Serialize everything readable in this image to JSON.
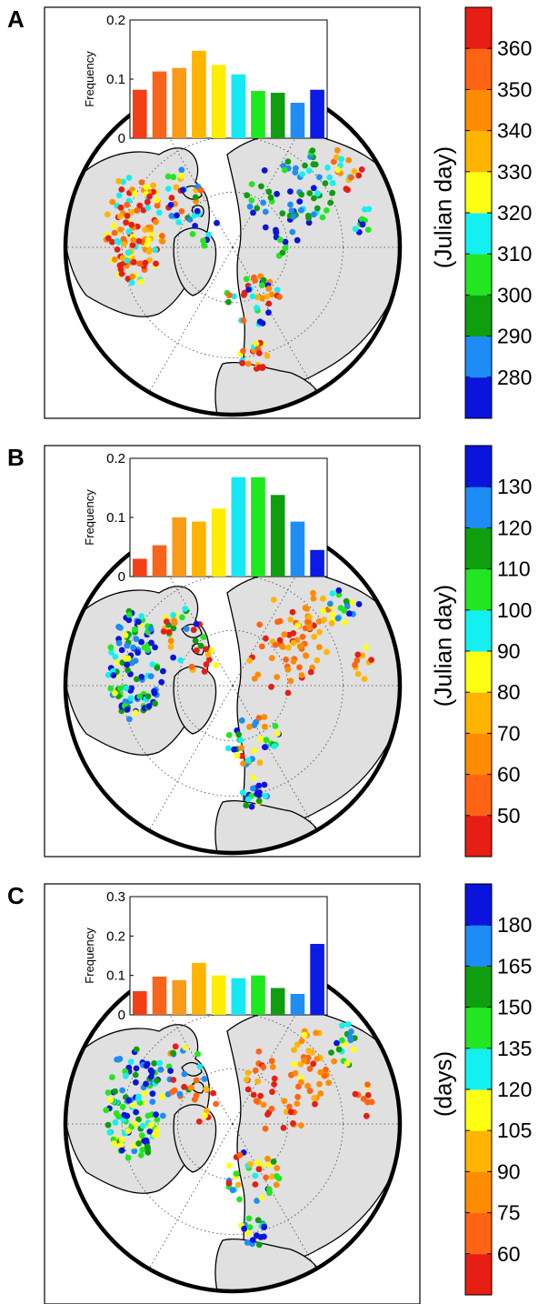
{
  "panels": [
    {
      "letter": "A",
      "ylabel": "Frequency",
      "ylim": [
        0,
        0.2
      ],
      "yticks": [
        "0",
        "0.1",
        "0.2"
      ],
      "hist_values": [
        0.082,
        0.113,
        0.119,
        0.148,
        0.124,
        0.108,
        0.08,
        0.077,
        0.06,
        0.082
      ],
      "hist_colors": [
        "#f43e16",
        "#f9641b",
        "#fa9b17",
        "#ffb400",
        "#ffee00",
        "#16e9f4",
        "#1ee81e",
        "#0e9e0e",
        "#1e8ef5",
        "#0a1be6"
      ],
      "colorbar": {
        "label": "(Julian day)",
        "ticks": [
          "280",
          "290",
          "300",
          "310",
          "320",
          "330",
          "340",
          "350",
          "360"
        ],
        "colors_bottom_to_top": [
          "#0a14dc",
          "#1e8cf5",
          "#0e9e0e",
          "#22e622",
          "#14f0f0",
          "#ffff14",
          "#ffb400",
          "#ff8c00",
          "#ff6414",
          "#e61e14"
        ]
      }
    },
    {
      "letter": "B",
      "ylabel": "Frequency",
      "ylim": [
        0,
        0.2
      ],
      "yticks": [
        "0",
        "0.1",
        "0.2"
      ],
      "hist_values": [
        0.03,
        0.053,
        0.1,
        0.093,
        0.115,
        0.168,
        0.168,
        0.138,
        0.093,
        0.045
      ],
      "hist_colors": [
        "#f43e16",
        "#f9641b",
        "#fa9b17",
        "#ffb400",
        "#ffee00",
        "#16e9f4",
        "#1ee81e",
        "#0e9e0e",
        "#1e8ef5",
        "#0a1be6"
      ],
      "colorbar": {
        "label": "(Julian day)",
        "ticks": [
          "50",
          "60",
          "70",
          "80",
          "90",
          "100",
          "110",
          "120",
          "130"
        ],
        "colors_bottom_to_top": [
          "#e61e14",
          "#ff6414",
          "#ff8c00",
          "#ffb400",
          "#ffff14",
          "#14f0f0",
          "#22e622",
          "#0e9e0e",
          "#1e8cf5",
          "#0a14dc"
        ]
      }
    },
    {
      "letter": "C",
      "ylabel": "Frequency",
      "ylim": [
        0,
        0.3
      ],
      "yticks": [
        "0",
        "0.1",
        "0.2",
        "0.3"
      ],
      "hist_values": [
        0.06,
        0.097,
        0.088,
        0.132,
        0.1,
        0.093,
        0.1,
        0.068,
        0.053,
        0.18
      ],
      "hist_colors": [
        "#f43e16",
        "#f9641b",
        "#fa9b17",
        "#ffb400",
        "#ffee00",
        "#16e9f4",
        "#1ee81e",
        "#0e9e0e",
        "#1e8ef5",
        "#0a1be6"
      ],
      "colorbar": {
        "label": "(days)",
        "ticks": [
          "60",
          "75",
          "90",
          "105",
          "120",
          "135",
          "150",
          "165",
          "180"
        ],
        "colors_bottom_to_top": [
          "#e61e14",
          "#ff6414",
          "#ff8c00",
          "#ffb400",
          "#ffff14",
          "#14f0f0",
          "#22e622",
          "#0e9e0e",
          "#1e8cf5",
          "#0a14dc"
        ]
      }
    }
  ]
}
